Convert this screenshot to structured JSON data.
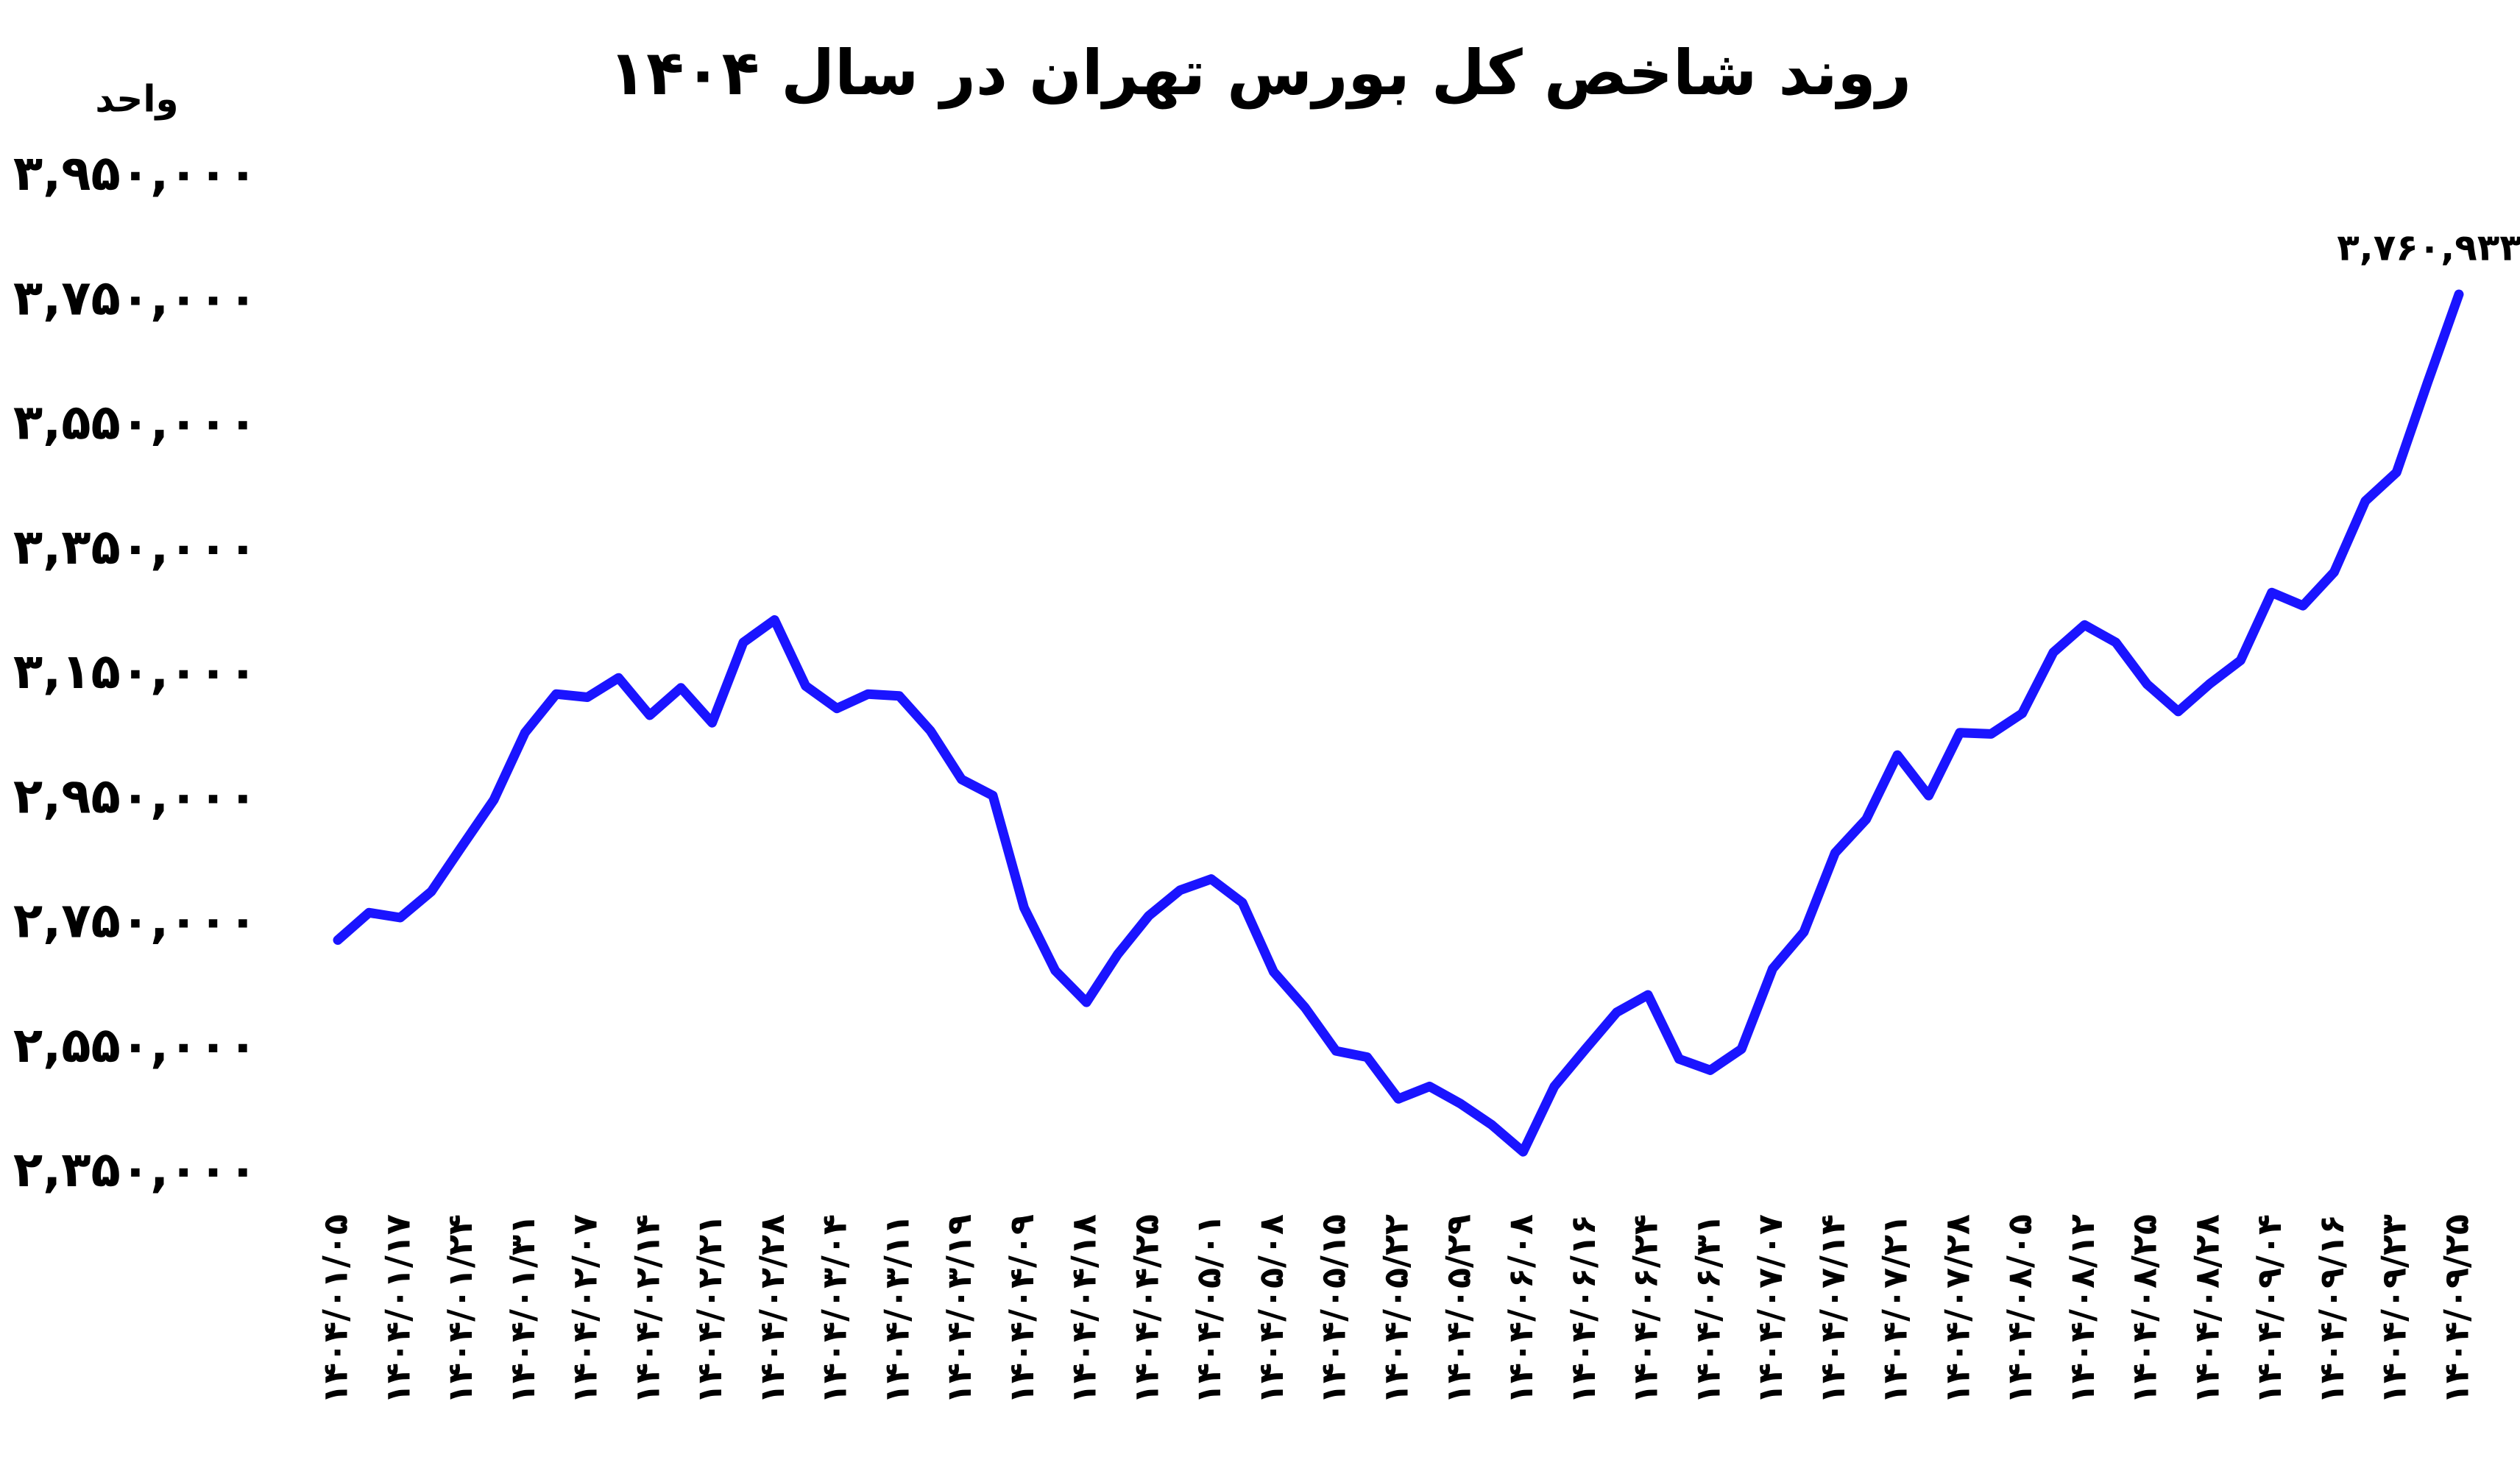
{
  "chart_data": {
    "type": "line",
    "title": "روند شاخص کل بورس تهران در سال ۱۴۰۴",
    "y_label": "واحد",
    "color": "#1a14ff",
    "categories": [
      "۱۴۰۴/۰۱/۰۵",
      null,
      "۱۴۰۴/۰۱/۱۷",
      null,
      "۱۴۰۴/۰۱/۲۴",
      null,
      "۱۴۰۴/۰۱/۳۱",
      null,
      "۱۴۰۴/۰۲/۰۷",
      null,
      "۱۴۰۴/۰۲/۱۴",
      null,
      "۱۴۰۴/۰۲/۲۱",
      null,
      "۱۴۰۴/۰۲/۲۸",
      null,
      "۱۴۰۴/۰۳/۰۴",
      null,
      "۱۴۰۴/۰۳/۱۱",
      null,
      "۱۴۰۴/۰۳/۱۹",
      null,
      "۱۴۰۴/۰۴/۰۹",
      null,
      "۱۴۰۴/۰۴/۱۸",
      null,
      "۱۴۰۴/۰۴/۲۵",
      null,
      "۱۴۰۴/۰۵/۰۱",
      null,
      "۱۴۰۴/۰۵/۰۸",
      null,
      "۱۴۰۴/۰۵/۱۵",
      null,
      "۱۴۰۴/۰۵/۲۲",
      null,
      "۱۴۰۴/۰۵/۲۹",
      null,
      "۱۴۰۴/۰۶/۰۸",
      null,
      "۱۴۰۴/۰۶/۱۶",
      null,
      "۱۴۰۴/۰۶/۲۴",
      null,
      "۱۴۰۴/۰۶/۳۱",
      null,
      "۱۴۰۴/۰۷/۰۷",
      null,
      "۱۴۰۴/۰۷/۱۴",
      null,
      "۱۴۰۴/۰۷/۲۱",
      null,
      "۱۴۰۴/۰۷/۲۸",
      null,
      "۱۴۰۴/۰۸/۰۵",
      null,
      "۱۴۰۴/۰۸/۱۲",
      null,
      "۱۴۰۴/۰۸/۲۵",
      null,
      "۱۴۰۴/۰۸/۲۸",
      null,
      "۱۴۰۴/۰۹/۰۴",
      null,
      "۱۴۰۴/۰۹/۱۶",
      null,
      "۱۴۰۴/۰۹/۲۳",
      null,
      "۱۴۰۴/۰۹/۲۵"
    ],
    "values": [
      2724000,
      2768000,
      2760000,
      2802000,
      2876000,
      2949000,
      3057000,
      3119000,
      3114000,
      3145000,
      3085000,
      3129000,
      3073000,
      3202000,
      3238000,
      3132000,
      3096000,
      3119000,
      3116000,
      3060000,
      2982000,
      2956000,
      2776000,
      2675000,
      2624000,
      2701000,
      2763000,
      2804000,
      2822000,
      2784000,
      2673000,
      2616000,
      2546000,
      2536000,
      2469000,
      2489000,
      2461000,
      2427000,
      2384000,
      2489000,
      2549000,
      2608000,
      2636000,
      2533000,
      2515000,
      2549000,
      2678000,
      2737000,
      2864000,
      2918000,
      3021000,
      2956000,
      3057000,
      3055000,
      3088000,
      3186000,
      3230000,
      3202000,
      3135000,
      3091000,
      3135000,
      3173000,
      3282000,
      3261000,
      3315000,
      3429000,
      3475000,
      3620000,
      3760933
    ],
    "value_labels": [
      null,
      null,
      null,
      null,
      null,
      null,
      null,
      null,
      null,
      null,
      null,
      null,
      null,
      null,
      null,
      null,
      null,
      null,
      null,
      null,
      null,
      null,
      null,
      null,
      null,
      null,
      null,
      null,
      null,
      null,
      null,
      null,
      null,
      null,
      null,
      null,
      null,
      null,
      null,
      null,
      null,
      null,
      null,
      null,
      null,
      null,
      null,
      null,
      null,
      null,
      null,
      null,
      null,
      null,
      null,
      null,
      null,
      null,
      null,
      null,
      null,
      null,
      null,
      null,
      null,
      null,
      null,
      null,
      "۳,۷۶۰,۹۳۳"
    ],
    "ylim": [
      2350000,
      3950000
    ],
    "yticks": [
      {
        "value": 2350000,
        "label": "۲,۳۵۰,۰۰۰"
      },
      {
        "value": 2550000,
        "label": "۲,۵۵۰,۰۰۰"
      },
      {
        "value": 2750000,
        "label": "۲,۷۵۰,۰۰۰"
      },
      {
        "value": 2950000,
        "label": "۲,۹۵۰,۰۰۰"
      },
      {
        "value": 3150000,
        "label": "۳,۱۵۰,۰۰۰"
      },
      {
        "value": 3350000,
        "label": "۳,۳۵۰,۰۰۰"
      },
      {
        "value": 3550000,
        "label": "۳,۵۵۰,۰۰۰"
      },
      {
        "value": 3750000,
        "label": "۳,۷۵۰,۰۰۰"
      },
      {
        "value": 3950000,
        "label": "۳,۹۵۰,۰۰۰"
      }
    ],
    "grid": false
  }
}
